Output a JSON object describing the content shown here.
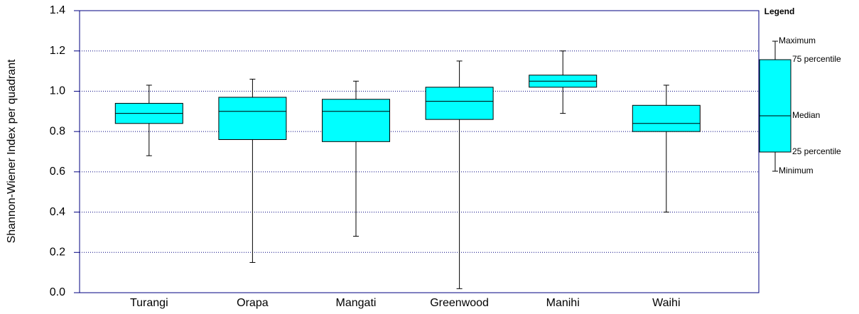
{
  "chart_data": {
    "type": "box",
    "y_label": "Shannon-Wiener Index per quadrant",
    "categories": [
      "Turangi",
      "Orapa",
      "Mangati",
      "Greenwood",
      "Manihi",
      "Waihi"
    ],
    "min": [
      0.68,
      0.15,
      0.28,
      0.02,
      0.89,
      0.4
    ],
    "q1": [
      0.84,
      0.76,
      0.75,
      0.86,
      1.02,
      0.8
    ],
    "median": [
      0.89,
      0.9,
      0.9,
      0.95,
      1.05,
      0.84
    ],
    "q3": [
      0.94,
      0.97,
      0.96,
      1.02,
      1.08,
      0.93
    ],
    "max": [
      1.03,
      1.06,
      1.05,
      1.15,
      1.2,
      1.03
    ],
    "color": "#00ffff",
    "ylim": [
      0,
      1.4
    ],
    "yticks": [
      {
        "value": 0,
        "label": "0.0"
      },
      0.2,
      0.4,
      0.6,
      0.8,
      {
        "value": 1,
        "label": "1.0"
      },
      1.2,
      1.4
    ],
    "grid": true,
    "legend": {
      "title": "Legend",
      "labels": [
        "Maximum",
        "75 percentile",
        "Median",
        "25 percentile",
        "Minimum"
      ]
    }
  }
}
